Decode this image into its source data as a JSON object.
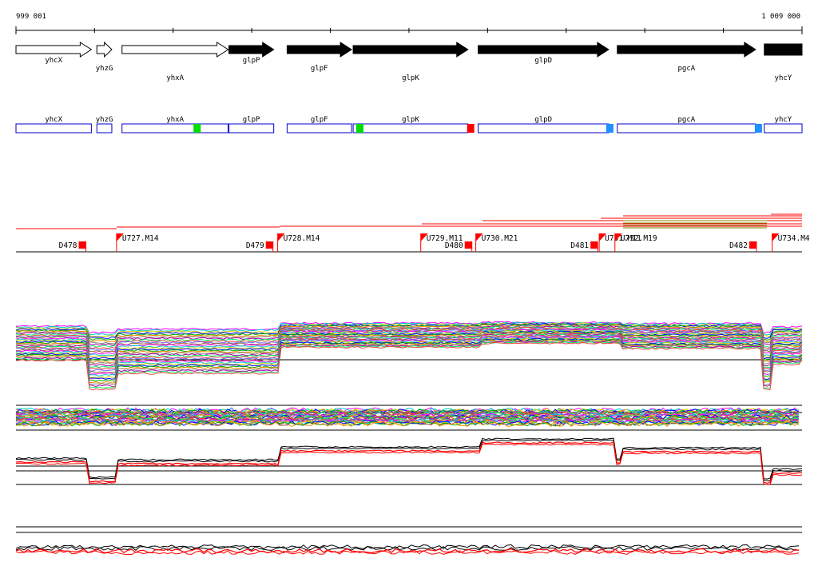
{
  "coords": {
    "start_label": "999 001",
    "end_label": "1 009 000",
    "start": 999001,
    "end": 1009000
  },
  "genes": [
    {
      "name": "yhcX",
      "start": 999001,
      "end": 999960,
      "strand": "+"
    },
    {
      "name": "yhzG",
      "start": 1000030,
      "end": 1000220,
      "strand": "+"
    },
    {
      "name": "yhxA",
      "start": 1000350,
      "end": 1001700,
      "strand": "+"
    },
    {
      "name": "glpP",
      "start": 1001710,
      "end": 1002280,
      "strand": "+"
    },
    {
      "name": "glpF",
      "start": 1002450,
      "end": 1003270,
      "strand": "+"
    },
    {
      "name": "glpK",
      "start": 1003290,
      "end": 1004750,
      "strand": "+"
    },
    {
      "name": "glpD",
      "start": 1004880,
      "end": 1006540,
      "strand": "+"
    },
    {
      "name": "pgcA",
      "start": 1006650,
      "end": 1008410,
      "strand": "+"
    },
    {
      "name": "yhcY",
      "start": 1008520,
      "end": 1009000,
      "strand": "+"
    }
  ],
  "annotation_markers": [
    {
      "pos": 1001300,
      "color": "#00dd00"
    },
    {
      "pos": 1003370,
      "color": "#00dd00"
    },
    {
      "pos": 1004780,
      "color": "#ff0000"
    },
    {
      "pos": 1006550,
      "color": "#1e90ff"
    },
    {
      "pos": 1008440,
      "color": "#1e90ff"
    }
  ],
  "signals": [
    {
      "label": "D478",
      "pos": 999870,
      "type": "D"
    },
    {
      "label": "U727.M14",
      "pos": 1000280,
      "type": "U"
    },
    {
      "label": "D479",
      "pos": 1002250,
      "type": "D"
    },
    {
      "label": "U728.M14",
      "pos": 1002330,
      "type": "U"
    },
    {
      "label": "U729.M11",
      "pos": 1004150,
      "type": "U"
    },
    {
      "label": "D480",
      "pos": 1004780,
      "type": "D"
    },
    {
      "label": "U730.M21",
      "pos": 1004850,
      "type": "U"
    },
    {
      "label": "D481",
      "pos": 1006380,
      "type": "D"
    },
    {
      "label": "U731.M11",
      "pos": 1006420,
      "type": "U"
    },
    {
      "label": "U732.M19",
      "pos": 1006620,
      "type": "U"
    },
    {
      "label": "D482",
      "pos": 1008400,
      "type": "D"
    },
    {
      "label": "U734.M4",
      "pos": 1008620,
      "type": "U"
    }
  ],
  "palette": {
    "gene_outline": "#000000",
    "gene_fill_plus": "#000000",
    "gene_fill_open": "#ffffff",
    "annotation_box": "#0000cc",
    "signal": "#ff0000",
    "median_profile": "#ff0000",
    "profile_line": "#000000",
    "condition_colors": [
      "#ff00ff",
      "#00cccc",
      "#cccc00",
      "#0000ff",
      "#00aa00",
      "#ff8800",
      "#888888",
      "#aa00aa",
      "#00ff66",
      "#ff4444",
      "#6666ff",
      "#996633"
    ]
  }
}
